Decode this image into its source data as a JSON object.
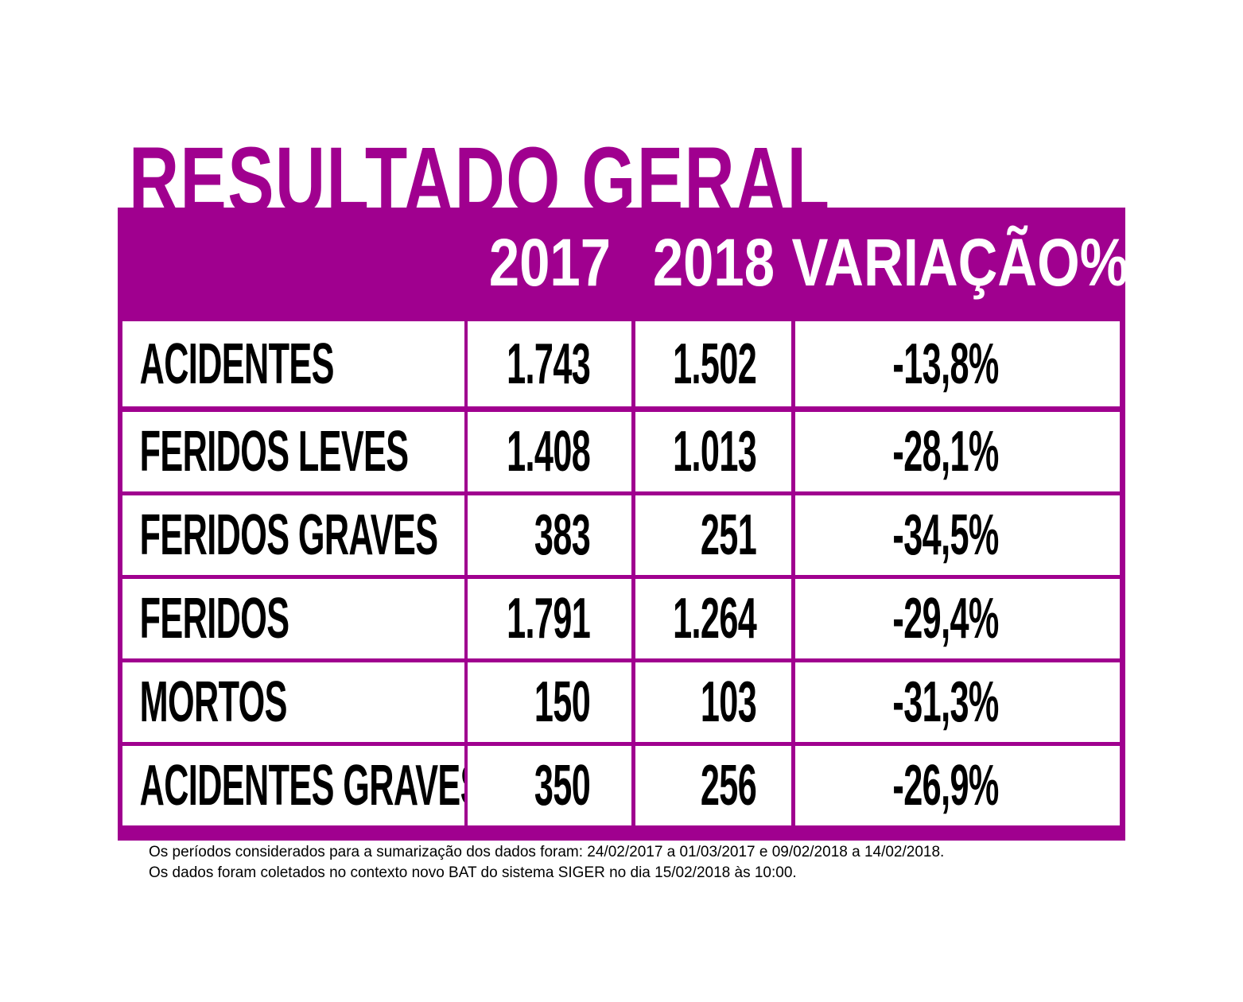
{
  "title": "RESULTADO GERAL",
  "colors": {
    "accent": "#a0008f",
    "background": "#ffffff",
    "text": "#000000"
  },
  "chart_data": {
    "type": "table",
    "title": "RESULTADO GERAL",
    "columns": [
      "",
      "2017",
      "2018",
      "VARIAÇÃO%"
    ],
    "rows": [
      {
        "label": "ACIDENTES",
        "y2017": "1.743",
        "y2018": "1.502",
        "variation": "-13,8%"
      },
      {
        "label": "FERIDOS LEVES",
        "y2017": "1.408",
        "y2018": "1.013",
        "variation": "-28,1%"
      },
      {
        "label": "FERIDOS GRAVES",
        "y2017": "383",
        "y2018": "251",
        "variation": "-34,5%"
      },
      {
        "label": "FERIDOS",
        "y2017": "1.791",
        "y2018": "1.264",
        "variation": "-29,4%"
      },
      {
        "label": "MORTOS",
        "y2017": "150",
        "y2018": "103",
        "variation": "-31,3%"
      },
      {
        "label": "ACIDENTES GRAVES",
        "y2017": "350",
        "y2018": "256",
        "variation": "-26,9%"
      }
    ]
  },
  "footnotes": [
    "Os períodos considerados para a sumarização dos dados foram: 24/02/2017 a 01/03/2017 e 09/02/2018 a 14/02/2018.",
    "Os dados foram coletados no contexto novo BAT do sistema SIGER no dia 15/02/2018 às 10:00."
  ]
}
